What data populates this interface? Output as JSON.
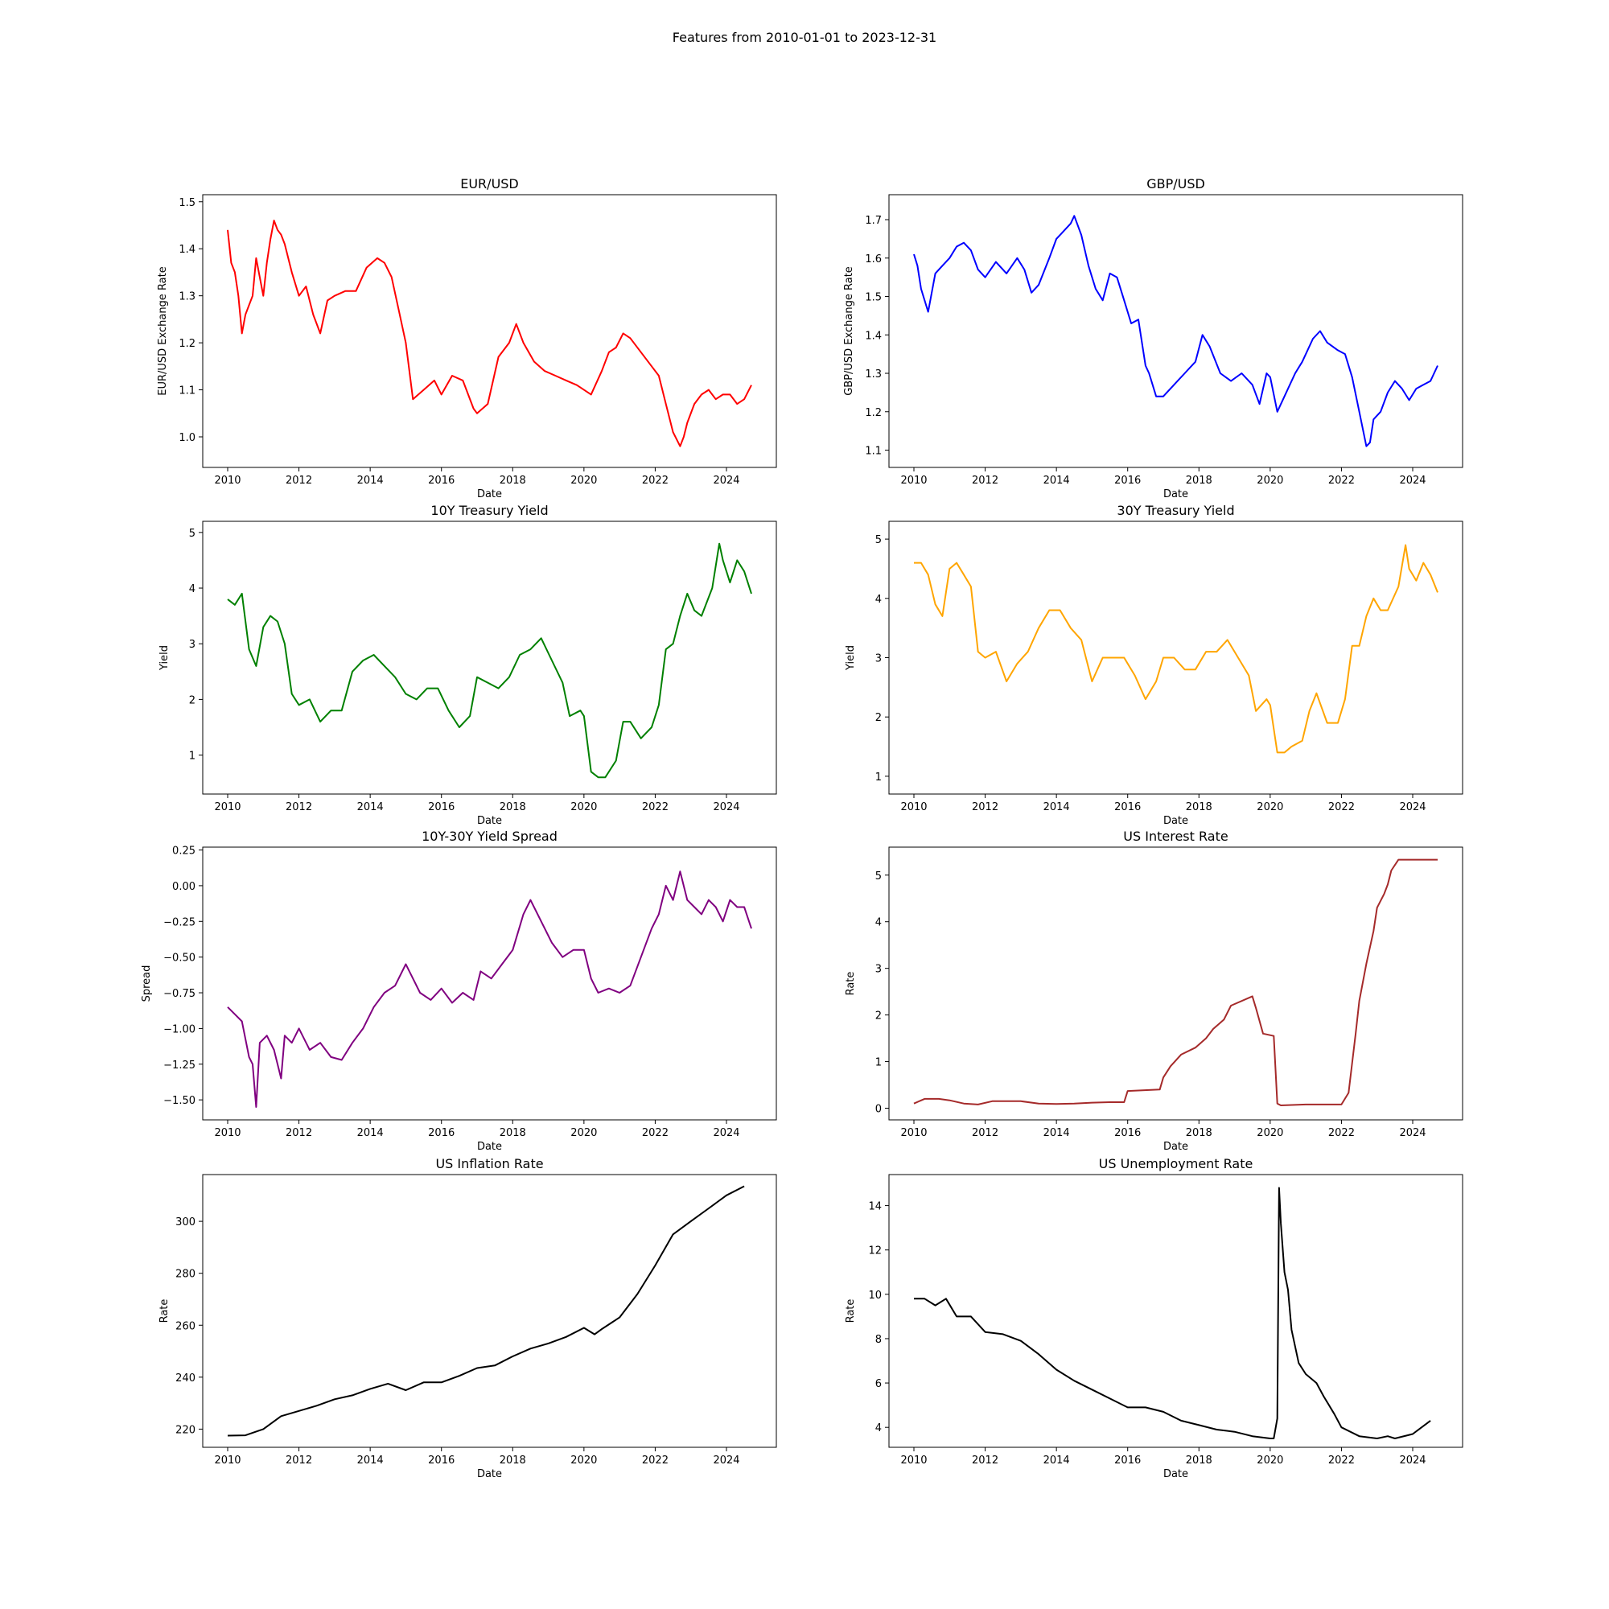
{
  "figure": {
    "suptitle": "Features from 2010-01-01 to 2023-12-31"
  },
  "chart_data": [
    {
      "type": "line",
      "title": "EUR/USD",
      "xlabel": "Date",
      "ylabel": "EUR/USD Exchange Rate",
      "color": "#ff0000",
      "xlim": [
        2009.3,
        2025.4
      ],
      "ylim": [
        0.935,
        1.515
      ],
      "xticks": [
        2010,
        2012,
        2014,
        2016,
        2018,
        2020,
        2022,
        2024
      ],
      "yticks": [
        1.0,
        1.1,
        1.2,
        1.3,
        1.4,
        1.5
      ],
      "ytick_decimals": 1,
      "x": [
        2010.0,
        2010.1,
        2010.2,
        2010.3,
        2010.4,
        2010.5,
        2010.7,
        2010.8,
        2011.0,
        2011.1,
        2011.2,
        2011.3,
        2011.4,
        2011.5,
        2011.6,
        2011.7,
        2011.8,
        2012.0,
        2012.2,
        2012.4,
        2012.6,
        2012.8,
        2013.0,
        2013.3,
        2013.6,
        2013.9,
        2014.2,
        2014.4,
        2014.6,
        2014.8,
        2015.0,
        2015.2,
        2015.5,
        2015.8,
        2016.0,
        2016.3,
        2016.6,
        2016.9,
        2017.0,
        2017.3,
        2017.6,
        2017.9,
        2018.1,
        2018.3,
        2018.6,
        2018.9,
        2019.2,
        2019.5,
        2019.8,
        2020.0,
        2020.2,
        2020.5,
        2020.7,
        2020.9,
        2021.1,
        2021.3,
        2021.6,
        2021.9,
        2022.1,
        2022.3,
        2022.5,
        2022.7,
        2022.8,
        2022.9,
        2023.1,
        2023.3,
        2023.5,
        2023.7,
        2023.9,
        2024.1,
        2024.3,
        2024.5,
        2024.7
      ],
      "y": [
        1.44,
        1.37,
        1.35,
        1.3,
        1.22,
        1.26,
        1.3,
        1.38,
        1.3,
        1.37,
        1.42,
        1.46,
        1.44,
        1.43,
        1.41,
        1.38,
        1.35,
        1.3,
        1.32,
        1.26,
        1.22,
        1.29,
        1.3,
        1.31,
        1.31,
        1.36,
        1.38,
        1.37,
        1.34,
        1.27,
        1.2,
        1.08,
        1.1,
        1.12,
        1.09,
        1.13,
        1.12,
        1.06,
        1.05,
        1.07,
        1.17,
        1.2,
        1.24,
        1.2,
        1.16,
        1.14,
        1.13,
        1.12,
        1.11,
        1.1,
        1.09,
        1.14,
        1.18,
        1.19,
        1.22,
        1.21,
        1.18,
        1.15,
        1.13,
        1.07,
        1.01,
        0.98,
        1.0,
        1.03,
        1.07,
        1.09,
        1.1,
        1.08,
        1.09,
        1.09,
        1.07,
        1.08,
        1.11
      ]
    },
    {
      "type": "line",
      "title": "GBP/USD",
      "xlabel": "Date",
      "ylabel": "GBP/USD Exchange Rate",
      "color": "#0000ff",
      "xlim": [
        2009.3,
        2025.4
      ],
      "ylim": [
        1.055,
        1.765
      ],
      "xticks": [
        2010,
        2012,
        2014,
        2016,
        2018,
        2020,
        2022,
        2024
      ],
      "yticks": [
        1.1,
        1.2,
        1.3,
        1.4,
        1.5,
        1.6,
        1.7
      ],
      "ytick_decimals": 1,
      "x": [
        2010.0,
        2010.1,
        2010.2,
        2010.3,
        2010.4,
        2010.6,
        2010.8,
        2011.0,
        2011.2,
        2011.4,
        2011.6,
        2011.8,
        2012.0,
        2012.3,
        2012.6,
        2012.9,
        2013.1,
        2013.3,
        2013.5,
        2013.8,
        2014.0,
        2014.2,
        2014.4,
        2014.5,
        2014.7,
        2014.9,
        2015.1,
        2015.3,
        2015.5,
        2015.7,
        2015.9,
        2016.1,
        2016.3,
        2016.5,
        2016.6,
        2016.8,
        2017.0,
        2017.3,
        2017.6,
        2017.9,
        2018.1,
        2018.3,
        2018.6,
        2018.9,
        2019.2,
        2019.5,
        2019.7,
        2019.9,
        2020.0,
        2020.2,
        2020.4,
        2020.7,
        2020.9,
        2021.2,
        2021.4,
        2021.6,
        2021.9,
        2022.1,
        2022.3,
        2022.5,
        2022.7,
        2022.8,
        2022.9,
        2023.1,
        2023.3,
        2023.5,
        2023.7,
        2023.9,
        2024.1,
        2024.3,
        2024.5,
        2024.7
      ],
      "y": [
        1.61,
        1.58,
        1.52,
        1.49,
        1.46,
        1.56,
        1.58,
        1.6,
        1.63,
        1.64,
        1.62,
        1.57,
        1.55,
        1.59,
        1.56,
        1.6,
        1.57,
        1.51,
        1.53,
        1.6,
        1.65,
        1.67,
        1.69,
        1.71,
        1.66,
        1.58,
        1.52,
        1.49,
        1.56,
        1.55,
        1.49,
        1.43,
        1.44,
        1.32,
        1.3,
        1.24,
        1.24,
        1.27,
        1.3,
        1.33,
        1.4,
        1.37,
        1.3,
        1.28,
        1.3,
        1.27,
        1.22,
        1.3,
        1.29,
        1.2,
        1.24,
        1.3,
        1.33,
        1.39,
        1.41,
        1.38,
        1.36,
        1.35,
        1.29,
        1.2,
        1.11,
        1.12,
        1.18,
        1.2,
        1.25,
        1.28,
        1.26,
        1.23,
        1.26,
        1.27,
        1.28,
        1.32
      ]
    },
    {
      "type": "line",
      "title": "10Y Treasury Yield",
      "xlabel": "Date",
      "ylabel": "Yield",
      "color": "#008000",
      "xlim": [
        2009.3,
        2025.4
      ],
      "ylim": [
        0.3,
        5.2
      ],
      "xticks": [
        2010,
        2012,
        2014,
        2016,
        2018,
        2020,
        2022,
        2024
      ],
      "yticks": [
        1,
        2,
        3,
        4,
        5
      ],
      "ytick_decimals": 0,
      "x": [
        2010.0,
        2010.2,
        2010.4,
        2010.6,
        2010.8,
        2011.0,
        2011.2,
        2011.4,
        2011.6,
        2011.8,
        2012.0,
        2012.3,
        2012.6,
        2012.9,
        2013.2,
        2013.5,
        2013.8,
        2014.1,
        2014.4,
        2014.7,
        2015.0,
        2015.3,
        2015.6,
        2015.9,
        2016.2,
        2016.5,
        2016.8,
        2017.0,
        2017.3,
        2017.6,
        2017.9,
        2018.2,
        2018.5,
        2018.8,
        2019.1,
        2019.4,
        2019.6,
        2019.9,
        2020.0,
        2020.2,
        2020.4,
        2020.6,
        2020.9,
        2021.1,
        2021.3,
        2021.6,
        2021.9,
        2022.1,
        2022.3,
        2022.5,
        2022.7,
        2022.9,
        2023.1,
        2023.3,
        2023.6,
        2023.8,
        2023.9,
        2024.1,
        2024.3,
        2024.5,
        2024.7
      ],
      "y": [
        3.8,
        3.7,
        3.9,
        2.9,
        2.6,
        3.3,
        3.5,
        3.4,
        3.0,
        2.1,
        1.9,
        2.0,
        1.6,
        1.8,
        1.8,
        2.5,
        2.7,
        2.8,
        2.6,
        2.4,
        2.1,
        2.0,
        2.2,
        2.2,
        1.8,
        1.5,
        1.7,
        2.4,
        2.3,
        2.2,
        2.4,
        2.8,
        2.9,
        3.1,
        2.7,
        2.3,
        1.7,
        1.8,
        1.7,
        0.7,
        0.6,
        0.6,
        0.9,
        1.6,
        1.6,
        1.3,
        1.5,
        1.9,
        2.9,
        3.0,
        3.5,
        3.9,
        3.6,
        3.5,
        4.0,
        4.8,
        4.5,
        4.1,
        4.5,
        4.3,
        3.9
      ]
    },
    {
      "type": "line",
      "title": "30Y Treasury Yield",
      "xlabel": "Date",
      "ylabel": "Yield",
      "color": "#ffa500",
      "xlim": [
        2009.3,
        2025.4
      ],
      "ylim": [
        0.7,
        5.3
      ],
      "xticks": [
        2010,
        2012,
        2014,
        2016,
        2018,
        2020,
        2022,
        2024
      ],
      "yticks": [
        1,
        2,
        3,
        4,
        5
      ],
      "ytick_decimals": 0,
      "x": [
        2010.0,
        2010.2,
        2010.4,
        2010.6,
        2010.8,
        2011.0,
        2011.2,
        2011.4,
        2011.6,
        2011.8,
        2012.0,
        2012.3,
        2012.6,
        2012.9,
        2013.2,
        2013.5,
        2013.8,
        2014.1,
        2014.4,
        2014.7,
        2015.0,
        2015.3,
        2015.6,
        2015.9,
        2016.2,
        2016.5,
        2016.8,
        2017.0,
        2017.3,
        2017.6,
        2017.9,
        2018.2,
        2018.5,
        2018.8,
        2019.1,
        2019.4,
        2019.6,
        2019.9,
        2020.0,
        2020.2,
        2020.4,
        2020.6,
        2020.9,
        2021.1,
        2021.3,
        2021.6,
        2021.9,
        2022.1,
        2022.3,
        2022.5,
        2022.7,
        2022.9,
        2023.1,
        2023.3,
        2023.6,
        2023.8,
        2023.9,
        2024.1,
        2024.3,
        2024.5,
        2024.7
      ],
      "y": [
        4.6,
        4.6,
        4.4,
        3.9,
        3.7,
        4.5,
        4.6,
        4.4,
        4.2,
        3.1,
        3.0,
        3.1,
        2.6,
        2.9,
        3.1,
        3.5,
        3.8,
        3.8,
        3.5,
        3.3,
        2.6,
        3.0,
        3.0,
        3.0,
        2.7,
        2.3,
        2.6,
        3.0,
        3.0,
        2.8,
        2.8,
        3.1,
        3.1,
        3.3,
        3.0,
        2.7,
        2.1,
        2.3,
        2.2,
        1.4,
        1.4,
        1.5,
        1.6,
        2.1,
        2.4,
        1.9,
        1.9,
        2.3,
        3.2,
        3.2,
        3.7,
        4.0,
        3.8,
        3.8,
        4.2,
        4.9,
        4.5,
        4.3,
        4.6,
        4.4,
        4.1
      ]
    },
    {
      "type": "line",
      "title": "10Y-30Y Yield Spread",
      "xlabel": "Date",
      "ylabel": "Spread",
      "color": "#800080",
      "xlim": [
        2009.3,
        2025.4
      ],
      "ylim": [
        -1.64,
        0.27
      ],
      "xticks": [
        2010,
        2012,
        2014,
        2016,
        2018,
        2020,
        2022,
        2024
      ],
      "yticks": [
        -1.5,
        -1.25,
        -1.0,
        -0.75,
        -0.5,
        -0.25,
        0.0,
        0.25
      ],
      "ytick_decimals": 2,
      "x": [
        2010.0,
        2010.2,
        2010.4,
        2010.6,
        2010.7,
        2010.8,
        2010.9,
        2011.1,
        2011.3,
        2011.5,
        2011.6,
        2011.8,
        2012.0,
        2012.3,
        2012.6,
        2012.9,
        2013.2,
        2013.5,
        2013.8,
        2014.1,
        2014.4,
        2014.7,
        2015.0,
        2015.2,
        2015.4,
        2015.7,
        2016.0,
        2016.3,
        2016.6,
        2016.9,
        2017.1,
        2017.4,
        2017.7,
        2018.0,
        2018.3,
        2018.5,
        2018.8,
        2019.1,
        2019.4,
        2019.7,
        2020.0,
        2020.2,
        2020.4,
        2020.7,
        2021.0,
        2021.3,
        2021.6,
        2021.9,
        2022.1,
        2022.3,
        2022.5,
        2022.7,
        2022.9,
        2023.1,
        2023.3,
        2023.5,
        2023.7,
        2023.9,
        2024.1,
        2024.3,
        2024.5,
        2024.7
      ],
      "y": [
        -0.85,
        -0.9,
        -0.95,
        -1.2,
        -1.25,
        -1.55,
        -1.1,
        -1.05,
        -1.15,
        -1.35,
        -1.05,
        -1.1,
        -1.0,
        -1.15,
        -1.1,
        -1.2,
        -1.22,
        -1.1,
        -1.0,
        -0.85,
        -0.75,
        -0.7,
        -0.55,
        -0.65,
        -0.75,
        -0.8,
        -0.72,
        -0.82,
        -0.75,
        -0.8,
        -0.6,
        -0.65,
        -0.55,
        -0.45,
        -0.2,
        -0.1,
        -0.25,
        -0.4,
        -0.5,
        -0.45,
        -0.45,
        -0.65,
        -0.75,
        -0.72,
        -0.75,
        -0.7,
        -0.5,
        -0.3,
        -0.2,
        0.0,
        -0.1,
        0.1,
        -0.1,
        -0.15,
        -0.2,
        -0.1,
        -0.15,
        -0.25,
        -0.1,
        -0.15,
        -0.15,
        -0.3
      ]
    },
    {
      "type": "line",
      "title": "US Interest Rate",
      "xlabel": "Date",
      "ylabel": "Rate",
      "color": "#a52a2a",
      "xlim": [
        2009.3,
        2025.4
      ],
      "ylim": [
        -0.25,
        5.6
      ],
      "xticks": [
        2010,
        2012,
        2014,
        2016,
        2018,
        2020,
        2022,
        2024
      ],
      "yticks": [
        0,
        1,
        2,
        3,
        4,
        5
      ],
      "ytick_decimals": 0,
      "x": [
        2010.0,
        2010.3,
        2010.7,
        2011.0,
        2011.4,
        2011.8,
        2012.2,
        2012.6,
        2013.0,
        2013.5,
        2014.0,
        2014.5,
        2015.0,
        2015.5,
        2015.9,
        2016.0,
        2016.9,
        2017.0,
        2017.2,
        2017.5,
        2017.9,
        2018.2,
        2018.4,
        2018.7,
        2018.9,
        2019.5,
        2019.6,
        2019.8,
        2020.1,
        2020.2,
        2020.3,
        2021.0,
        2022.0,
        2022.2,
        2022.4,
        2022.5,
        2022.7,
        2022.9,
        2023.0,
        2023.2,
        2023.3,
        2023.4,
        2023.6,
        2024.0,
        2024.7
      ],
      "y": [
        0.1,
        0.2,
        0.2,
        0.17,
        0.1,
        0.08,
        0.15,
        0.15,
        0.15,
        0.1,
        0.09,
        0.1,
        0.12,
        0.13,
        0.13,
        0.37,
        0.4,
        0.66,
        0.9,
        1.15,
        1.3,
        1.5,
        1.7,
        1.9,
        2.2,
        2.4,
        2.15,
        1.6,
        1.55,
        0.1,
        0.06,
        0.08,
        0.08,
        0.33,
        1.6,
        2.3,
        3.1,
        3.8,
        4.3,
        4.6,
        4.8,
        5.1,
        5.33,
        5.33,
        5.33
      ]
    },
    {
      "type": "line",
      "title": "US Inflation Rate",
      "xlabel": "Date",
      "ylabel": "Rate",
      "color": "#000000",
      "xlim": [
        2009.3,
        2025.4
      ],
      "ylim": [
        213,
        318
      ],
      "xticks": [
        2010,
        2012,
        2014,
        2016,
        2018,
        2020,
        2022,
        2024
      ],
      "yticks": [
        220,
        240,
        260,
        280,
        300
      ],
      "ytick_decimals": 0,
      "x": [
        2010.0,
        2010.5,
        2011.0,
        2011.5,
        2012.0,
        2012.5,
        2013.0,
        2013.5,
        2014.0,
        2014.5,
        2015.0,
        2015.5,
        2016.0,
        2016.5,
        2017.0,
        2017.5,
        2018.0,
        2018.5,
        2019.0,
        2019.5,
        2020.0,
        2020.3,
        2020.5,
        2021.0,
        2021.5,
        2022.0,
        2022.5,
        2023.0,
        2023.5,
        2024.0,
        2024.5
      ],
      "y": [
        217.5,
        217.6,
        220.0,
        225.0,
        227.0,
        229.0,
        231.5,
        233.0,
        235.5,
        237.5,
        235.0,
        238.0,
        238.0,
        240.5,
        243.5,
        244.5,
        248.0,
        251.0,
        253.0,
        255.5,
        259.0,
        256.5,
        258.5,
        263.0,
        272.0,
        283.0,
        295.0,
        300.0,
        305.0,
        310.0,
        313.5
      ]
    },
    {
      "type": "line",
      "title": "US Unemployment Rate",
      "xlabel": "Date",
      "ylabel": "Rate",
      "color": "#000000",
      "xlim": [
        2009.3,
        2025.4
      ],
      "ylim": [
        3.1,
        15.4
      ],
      "xticks": [
        2010,
        2012,
        2014,
        2016,
        2018,
        2020,
        2022,
        2024
      ],
      "yticks": [
        4,
        6,
        8,
        10,
        12,
        14
      ],
      "ytick_decimals": 0,
      "x": [
        2010.0,
        2010.3,
        2010.6,
        2010.9,
        2011.2,
        2011.6,
        2012.0,
        2012.5,
        2013.0,
        2013.5,
        2014.0,
        2014.5,
        2015.0,
        2015.5,
        2016.0,
        2016.5,
        2017.0,
        2017.5,
        2018.0,
        2018.5,
        2019.0,
        2019.5,
        2020.0,
        2020.1,
        2020.2,
        2020.25,
        2020.3,
        2020.4,
        2020.5,
        2020.6,
        2020.8,
        2021.0,
        2021.3,
        2021.5,
        2021.8,
        2022.0,
        2022.5,
        2023.0,
        2023.3,
        2023.5,
        2024.0,
        2024.5
      ],
      "y": [
        9.8,
        9.8,
        9.5,
        9.8,
        9.0,
        9.0,
        8.3,
        8.2,
        7.9,
        7.3,
        6.6,
        6.1,
        5.7,
        5.3,
        4.9,
        4.9,
        4.7,
        4.3,
        4.1,
        3.9,
        3.8,
        3.6,
        3.5,
        3.5,
        4.4,
        14.8,
        13.2,
        11.0,
        10.2,
        8.4,
        6.9,
        6.4,
        6.0,
        5.4,
        4.6,
        4.0,
        3.6,
        3.5,
        3.6,
        3.5,
        3.7,
        4.3
      ]
    }
  ]
}
